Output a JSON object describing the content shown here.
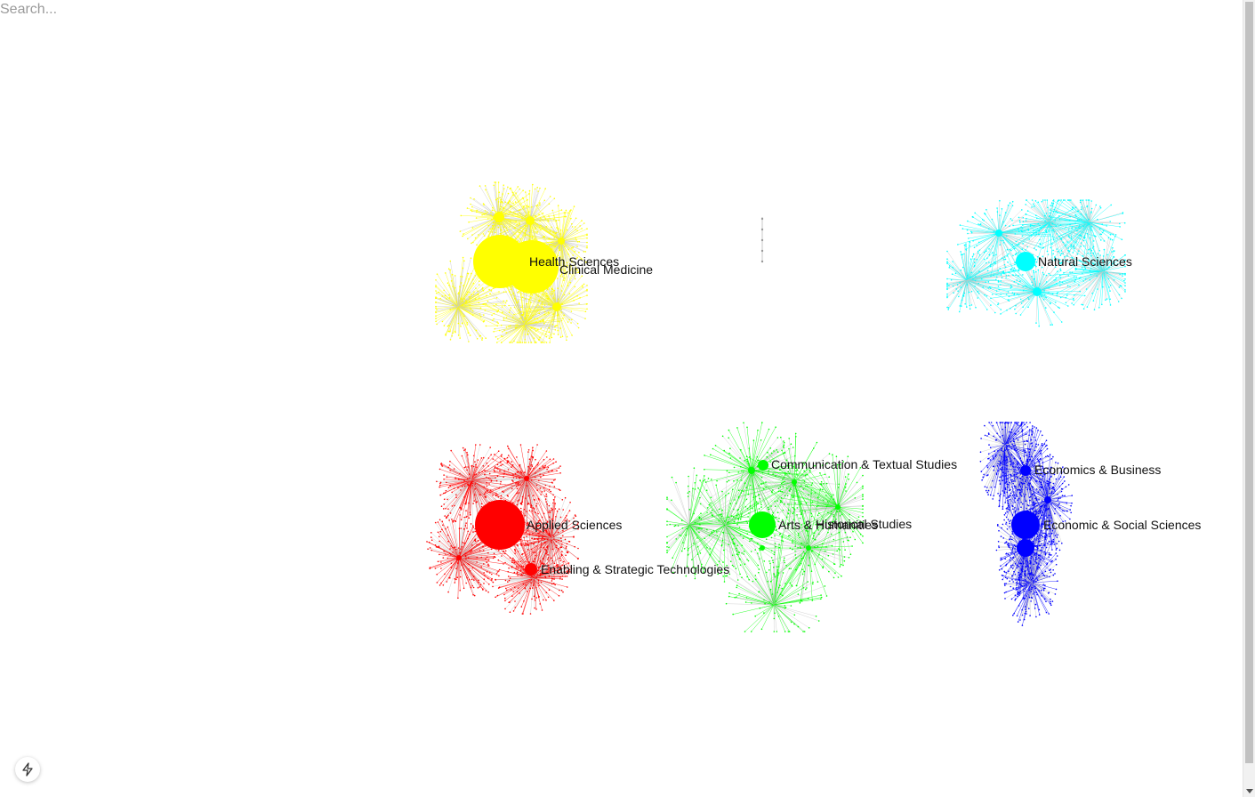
{
  "search": {
    "placeholder": "Search..."
  },
  "graph": {
    "clusters": [
      {
        "color": "#ffff00",
        "nodes": [
          {
            "label": "Health Sciences"
          },
          {
            "label": "Clinical Medicine"
          }
        ]
      },
      {
        "color": "#00ffff",
        "nodes": [
          {
            "label": "Natural Sciences"
          }
        ]
      },
      {
        "color": "#ff0000",
        "nodes": [
          {
            "label": "Applied Sciences"
          },
          {
            "label": "Enabling & Strategic Technologies"
          }
        ]
      },
      {
        "color": "#00ff00",
        "nodes": [
          {
            "label": "Communication & Textual Studies"
          },
          {
            "label": "Arts & Humanities"
          },
          {
            "label": "Historical Studies"
          }
        ]
      },
      {
        "color": "#0000ff",
        "nodes": [
          {
            "label": "Economics & Business"
          },
          {
            "label": "Economic & Social Sciences"
          }
        ]
      }
    ],
    "edge_color": "#c8c8c8"
  },
  "toolbar": {
    "fab_icon": "lightning-icon"
  }
}
